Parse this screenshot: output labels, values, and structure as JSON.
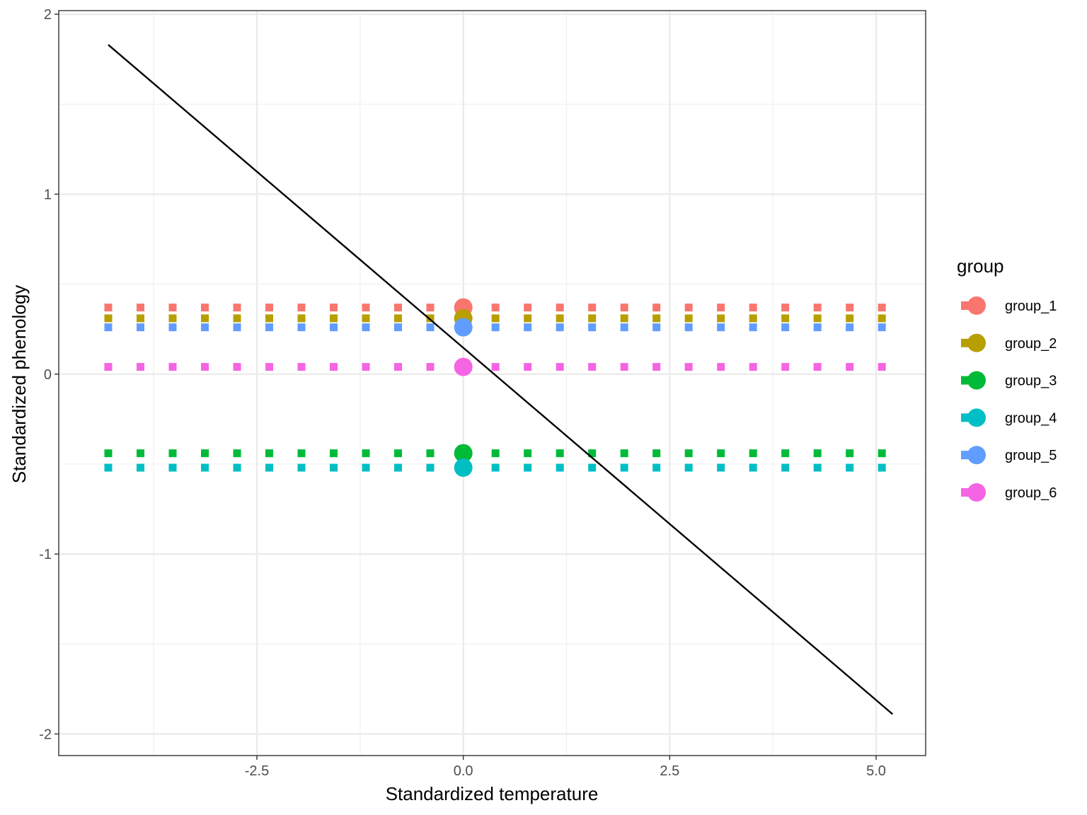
{
  "chart_data": {
    "type": "scatter",
    "title": "",
    "xlabel": "Standardized temperature",
    "ylabel": "Standardized phenology",
    "xlim": [
      -4.9,
      5.6
    ],
    "ylim": [
      -2.12,
      2.02
    ],
    "x_ticks": [
      -2.5,
      0.0,
      2.5,
      5.0
    ],
    "x_tick_labels": [
      "-2.5",
      "0.0",
      "2.5",
      "5.0"
    ],
    "y_ticks": [
      -2,
      -1,
      0,
      1,
      2
    ],
    "y_tick_labels": [
      "-2",
      "-1",
      "0",
      "1",
      "2"
    ],
    "grid": true,
    "legend": {
      "title": "group",
      "position": "right"
    },
    "series_x": [
      -4.3,
      -3.91,
      -3.52,
      -3.13,
      -2.74,
      -2.35,
      -1.96,
      -1.57,
      -1.18,
      -0.79,
      -0.4,
      0.39,
      0.78,
      1.17,
      1.56,
      1.95,
      2.34,
      2.73,
      3.12,
      3.51,
      3.9,
      4.29,
      4.68,
      5.07
    ],
    "series": [
      {
        "name": "group_1",
        "color": "#F8766D",
        "y": 0.37,
        "center_x": 0.0,
        "center_y": 0.37
      },
      {
        "name": "group_2",
        "color": "#B79F00",
        "y": 0.31,
        "center_x": 0.0,
        "center_y": 0.31
      },
      {
        "name": "group_3",
        "color": "#00BA38",
        "y": -0.44,
        "center_x": 0.0,
        "center_y": -0.44
      },
      {
        "name": "group_4",
        "color": "#00BFC4",
        "y": -0.52,
        "center_x": 0.0,
        "center_y": -0.52
      },
      {
        "name": "group_5",
        "color": "#619CFF",
        "y": 0.26,
        "center_x": 0.0,
        "center_y": 0.26
      },
      {
        "name": "group_6",
        "color": "#F564E3",
        "y": 0.04,
        "center_x": 0.0,
        "center_y": 0.04
      }
    ],
    "regression_line": {
      "x": [
        -4.3,
        5.2
      ],
      "y": [
        1.83,
        -1.89
      ],
      "color": "#000000"
    }
  }
}
